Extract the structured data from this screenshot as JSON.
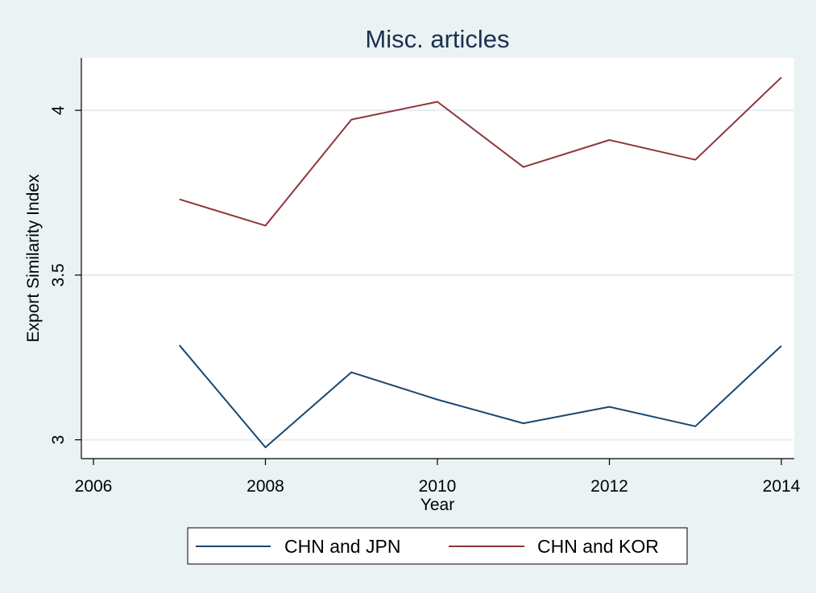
{
  "chart_data": {
    "type": "line",
    "title": "Misc. articles",
    "xlabel": "Year",
    "ylabel": "Export Similarity Index",
    "xlim": [
      2006,
      2014
    ],
    "ylim": [
      2.977,
      4.12
    ],
    "xticks": [
      2006,
      2008,
      2010,
      2012,
      2014
    ],
    "yticks": [
      3,
      3.5,
      4
    ],
    "x_tick_labels": [
      "2006",
      "2008",
      "2010",
      "2012",
      "2014"
    ],
    "y_tick_labels": [
      "3",
      "3.5",
      "4"
    ],
    "grid": true,
    "legend_position": "bottom",
    "x": [
      2007,
      2008,
      2009,
      2010,
      2011,
      2012,
      2013,
      2014
    ],
    "series": [
      {
        "name": "CHN and JPN",
        "color": "#1a476f",
        "values": [
          3.287,
          2.977,
          3.205,
          3.122,
          3.05,
          3.1,
          3.041,
          3.285
        ]
      },
      {
        "name": "CHN and KOR",
        "color": "#90353b",
        "values": [
          3.73,
          3.65,
          3.972,
          4.026,
          3.828,
          3.91,
          3.85,
          4.1
        ]
      }
    ]
  }
}
